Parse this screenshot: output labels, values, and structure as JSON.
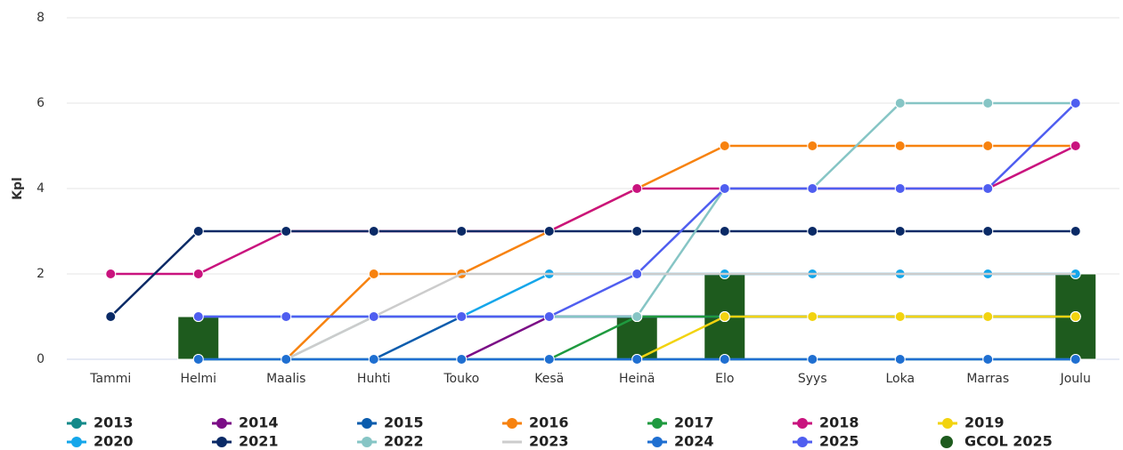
{
  "chart_data": {
    "type": "line",
    "y_label": "Kpl",
    "categories": [
      "Tammi",
      "Helmi",
      "Maalis",
      "Huhti",
      "Touko",
      "Kesä",
      "Heinä",
      "Elo",
      "Syys",
      "Loka",
      "Marras",
      "Joulu"
    ],
    "ylim": [
      0,
      8
    ],
    "yticks": [
      0,
      2,
      4,
      6,
      8
    ],
    "grid": true,
    "series": [
      {
        "name": "2013",
        "color": "#138a8a",
        "values": [
          null,
          0,
          0,
          0,
          0,
          0,
          0,
          0,
          0,
          0,
          0,
          0
        ]
      },
      {
        "name": "2014",
        "color": "#7b0d86",
        "values": [
          null,
          null,
          null,
          null,
          0,
          1,
          1,
          1,
          1,
          1,
          1,
          1
        ]
      },
      {
        "name": "2015",
        "color": "#0b5cad",
        "values": [
          null,
          null,
          null,
          0,
          1,
          1,
          1,
          1,
          1,
          1,
          1,
          1
        ]
      },
      {
        "name": "2016",
        "color": "#f7820f",
        "values": [
          null,
          null,
          0,
          2,
          2,
          3,
          4,
          5,
          5,
          5,
          5,
          5
        ]
      },
      {
        "name": "2017",
        "color": "#1f9a3f",
        "values": [
          null,
          null,
          null,
          null,
          null,
          0,
          1,
          1,
          1,
          1,
          1,
          1
        ]
      },
      {
        "name": "2018",
        "color": "#c9137e",
        "values": [
          2,
          2,
          3,
          3,
          3,
          3,
          4,
          4,
          4,
          4,
          4,
          5
        ]
      },
      {
        "name": "2019",
        "color": "#f2d30f",
        "values": [
          null,
          null,
          null,
          null,
          null,
          null,
          0,
          1,
          1,
          1,
          1,
          1
        ]
      },
      {
        "name": "2020",
        "color": "#14a6ea",
        "values": [
          null,
          1,
          1,
          1,
          1,
          2,
          2,
          2,
          2,
          2,
          2,
          2
        ]
      },
      {
        "name": "2021",
        "color": "#0a2a66",
        "values": [
          1,
          3,
          3,
          3,
          3,
          3,
          3,
          3,
          3,
          3,
          3,
          3
        ]
      },
      {
        "name": "2022",
        "color": "#86c5c5",
        "values": [
          null,
          null,
          0,
          1,
          1,
          1,
          1,
          4,
          4,
          6,
          6,
          6
        ]
      },
      {
        "name": "2023",
        "color": "#cccccc",
        "markers": false,
        "values": [
          null,
          null,
          0,
          1,
          2,
          2,
          2,
          2,
          2,
          2,
          2,
          2
        ]
      },
      {
        "name": "2024",
        "color": "#1f6fd1",
        "values": [
          null,
          0,
          0,
          0,
          0,
          0,
          0,
          0,
          0,
          0,
          0,
          0
        ]
      },
      {
        "name": "2025",
        "color": "#4f5ef0",
        "values": [
          null,
          1,
          1,
          1,
          1,
          1,
          2,
          4,
          4,
          4,
          4,
          6
        ]
      },
      {
        "name": "GCOL 2025",
        "color": "#1e5b1e",
        "type": "bar",
        "values": [
          0,
          1,
          0,
          0,
          0,
          0,
          1,
          2,
          0,
          0,
          0,
          2
        ]
      }
    ]
  }
}
